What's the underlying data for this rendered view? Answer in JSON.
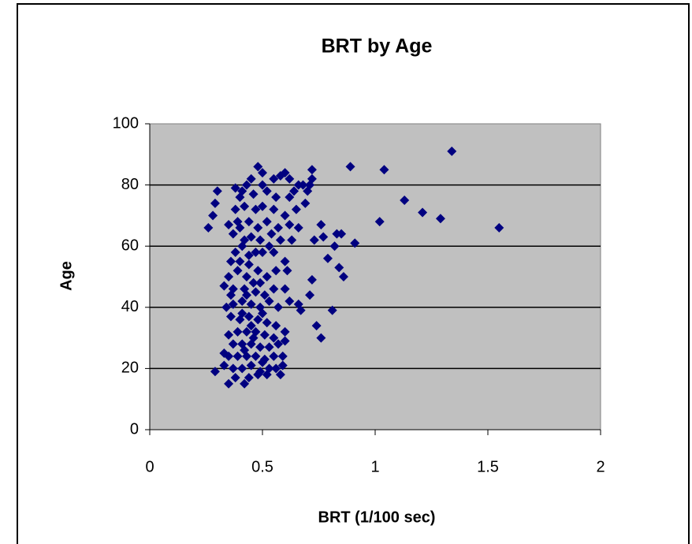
{
  "chart_data": {
    "type": "scatter",
    "title": "BRT by Age",
    "x_label": "BRT (1/100 sec)",
    "y_label": "Age",
    "color": "#000080",
    "xlim": [
      0,
      2
    ],
    "ylim": [
      0,
      100
    ],
    "xticks": [
      0,
      0.5,
      1,
      1.5,
      2
    ],
    "yticks": [
      0,
      20,
      40,
      60,
      80,
      100
    ],
    "grid": true,
    "x": [
      0.89,
      1.04,
      1.34,
      1.13,
      1.21,
      1.29,
      1.02,
      1.55,
      0.91,
      0.85,
      0.83,
      0.82,
      0.86,
      0.84,
      0.81,
      0.79,
      0.77,
      0.76,
      0.73,
      0.72,
      0.74,
      0.76,
      0.71,
      0.67,
      0.66,
      0.58,
      0.59,
      0.6,
      0.26,
      0.28,
      0.29,
      0.3,
      0.29,
      0.35,
      0.42,
      0.48,
      0.5,
      0.58,
      0.6,
      0.62,
      0.55,
      0.45,
      0.43,
      0.41,
      0.38,
      0.4,
      0.46,
      0.52,
      0.56,
      0.62,
      0.66,
      0.68,
      0.7,
      0.72,
      0.72,
      0.71,
      0.69,
      0.65,
      0.6,
      0.55,
      0.5,
      0.47,
      0.42,
      0.38,
      0.35,
      0.37,
      0.4,
      0.44,
      0.48,
      0.52,
      0.57,
      0.62,
      0.66,
      0.63,
      0.58,
      0.53,
      0.49,
      0.45,
      0.41,
      0.38,
      0.36,
      0.4,
      0.44,
      0.5,
      0.55,
      0.6,
      0.61,
      0.56,
      0.52,
      0.48,
      0.43,
      0.39,
      0.35,
      0.33,
      0.37,
      0.42,
      0.47,
      0.51,
      0.55,
      0.6,
      0.62,
      0.57,
      0.53,
      0.49,
      0.45,
      0.41,
      0.37,
      0.34,
      0.36,
      0.4,
      0.44,
      0.48,
      0.52,
      0.56,
      0.6,
      0.55,
      0.51,
      0.47,
      0.43,
      0.39,
      0.35,
      0.37,
      0.41,
      0.45,
      0.49,
      0.53,
      0.57,
      0.59,
      0.55,
      0.51,
      0.47,
      0.43,
      0.39,
      0.35,
      0.33,
      0.37,
      0.41,
      0.45,
      0.49,
      0.53,
      0.56,
      0.38,
      0.44,
      0.48,
      0.52,
      0.33,
      0.46,
      0.44,
      0.42,
      0.5,
      0.54,
      0.64,
      0.39,
      0.47,
      0.43,
      0.41,
      0.45,
      0.49,
      0.36,
      0.5,
      0.46,
      0.42,
      0.5
    ],
    "values": [
      86,
      85,
      91,
      75,
      71,
      69,
      68,
      66,
      61,
      64,
      64,
      60,
      50,
      53,
      39,
      56,
      63,
      67,
      62,
      49,
      34,
      30,
      44,
      39,
      41,
      18,
      21,
      29,
      66,
      70,
      74,
      78,
      19,
      15,
      15,
      86,
      84,
      83,
      84,
      82,
      82,
      82,
      80,
      78,
      79,
      76,
      77,
      78,
      76,
      76,
      80,
      80,
      78,
      85,
      82,
      80,
      74,
      72,
      70,
      72,
      73,
      72,
      73,
      72,
      67,
      64,
      66,
      68,
      66,
      68,
      66,
      67,
      66,
      62,
      62,
      60,
      62,
      63,
      60,
      58,
      55,
      55,
      57,
      58,
      58,
      55,
      52,
      52,
      50,
      52,
      50,
      52,
      50,
      47,
      46,
      46,
      45,
      44,
      46,
      46,
      42,
      40,
      42,
      40,
      41,
      42,
      41,
      40,
      37,
      36,
      37,
      36,
      35,
      34,
      32,
      30,
      31,
      32,
      32,
      32,
      31,
      28,
      28,
      28,
      27,
      27,
      28,
      24,
      24,
      23,
      24,
      24,
      24,
      24,
      21,
      20,
      20,
      21,
      19,
      20,
      20,
      17,
      17,
      18,
      18,
      25,
      48,
      54,
      62,
      80,
      64,
      78,
      68,
      58,
      44,
      38,
      34,
      48,
      44,
      38,
      30,
      26,
      22
    ]
  }
}
